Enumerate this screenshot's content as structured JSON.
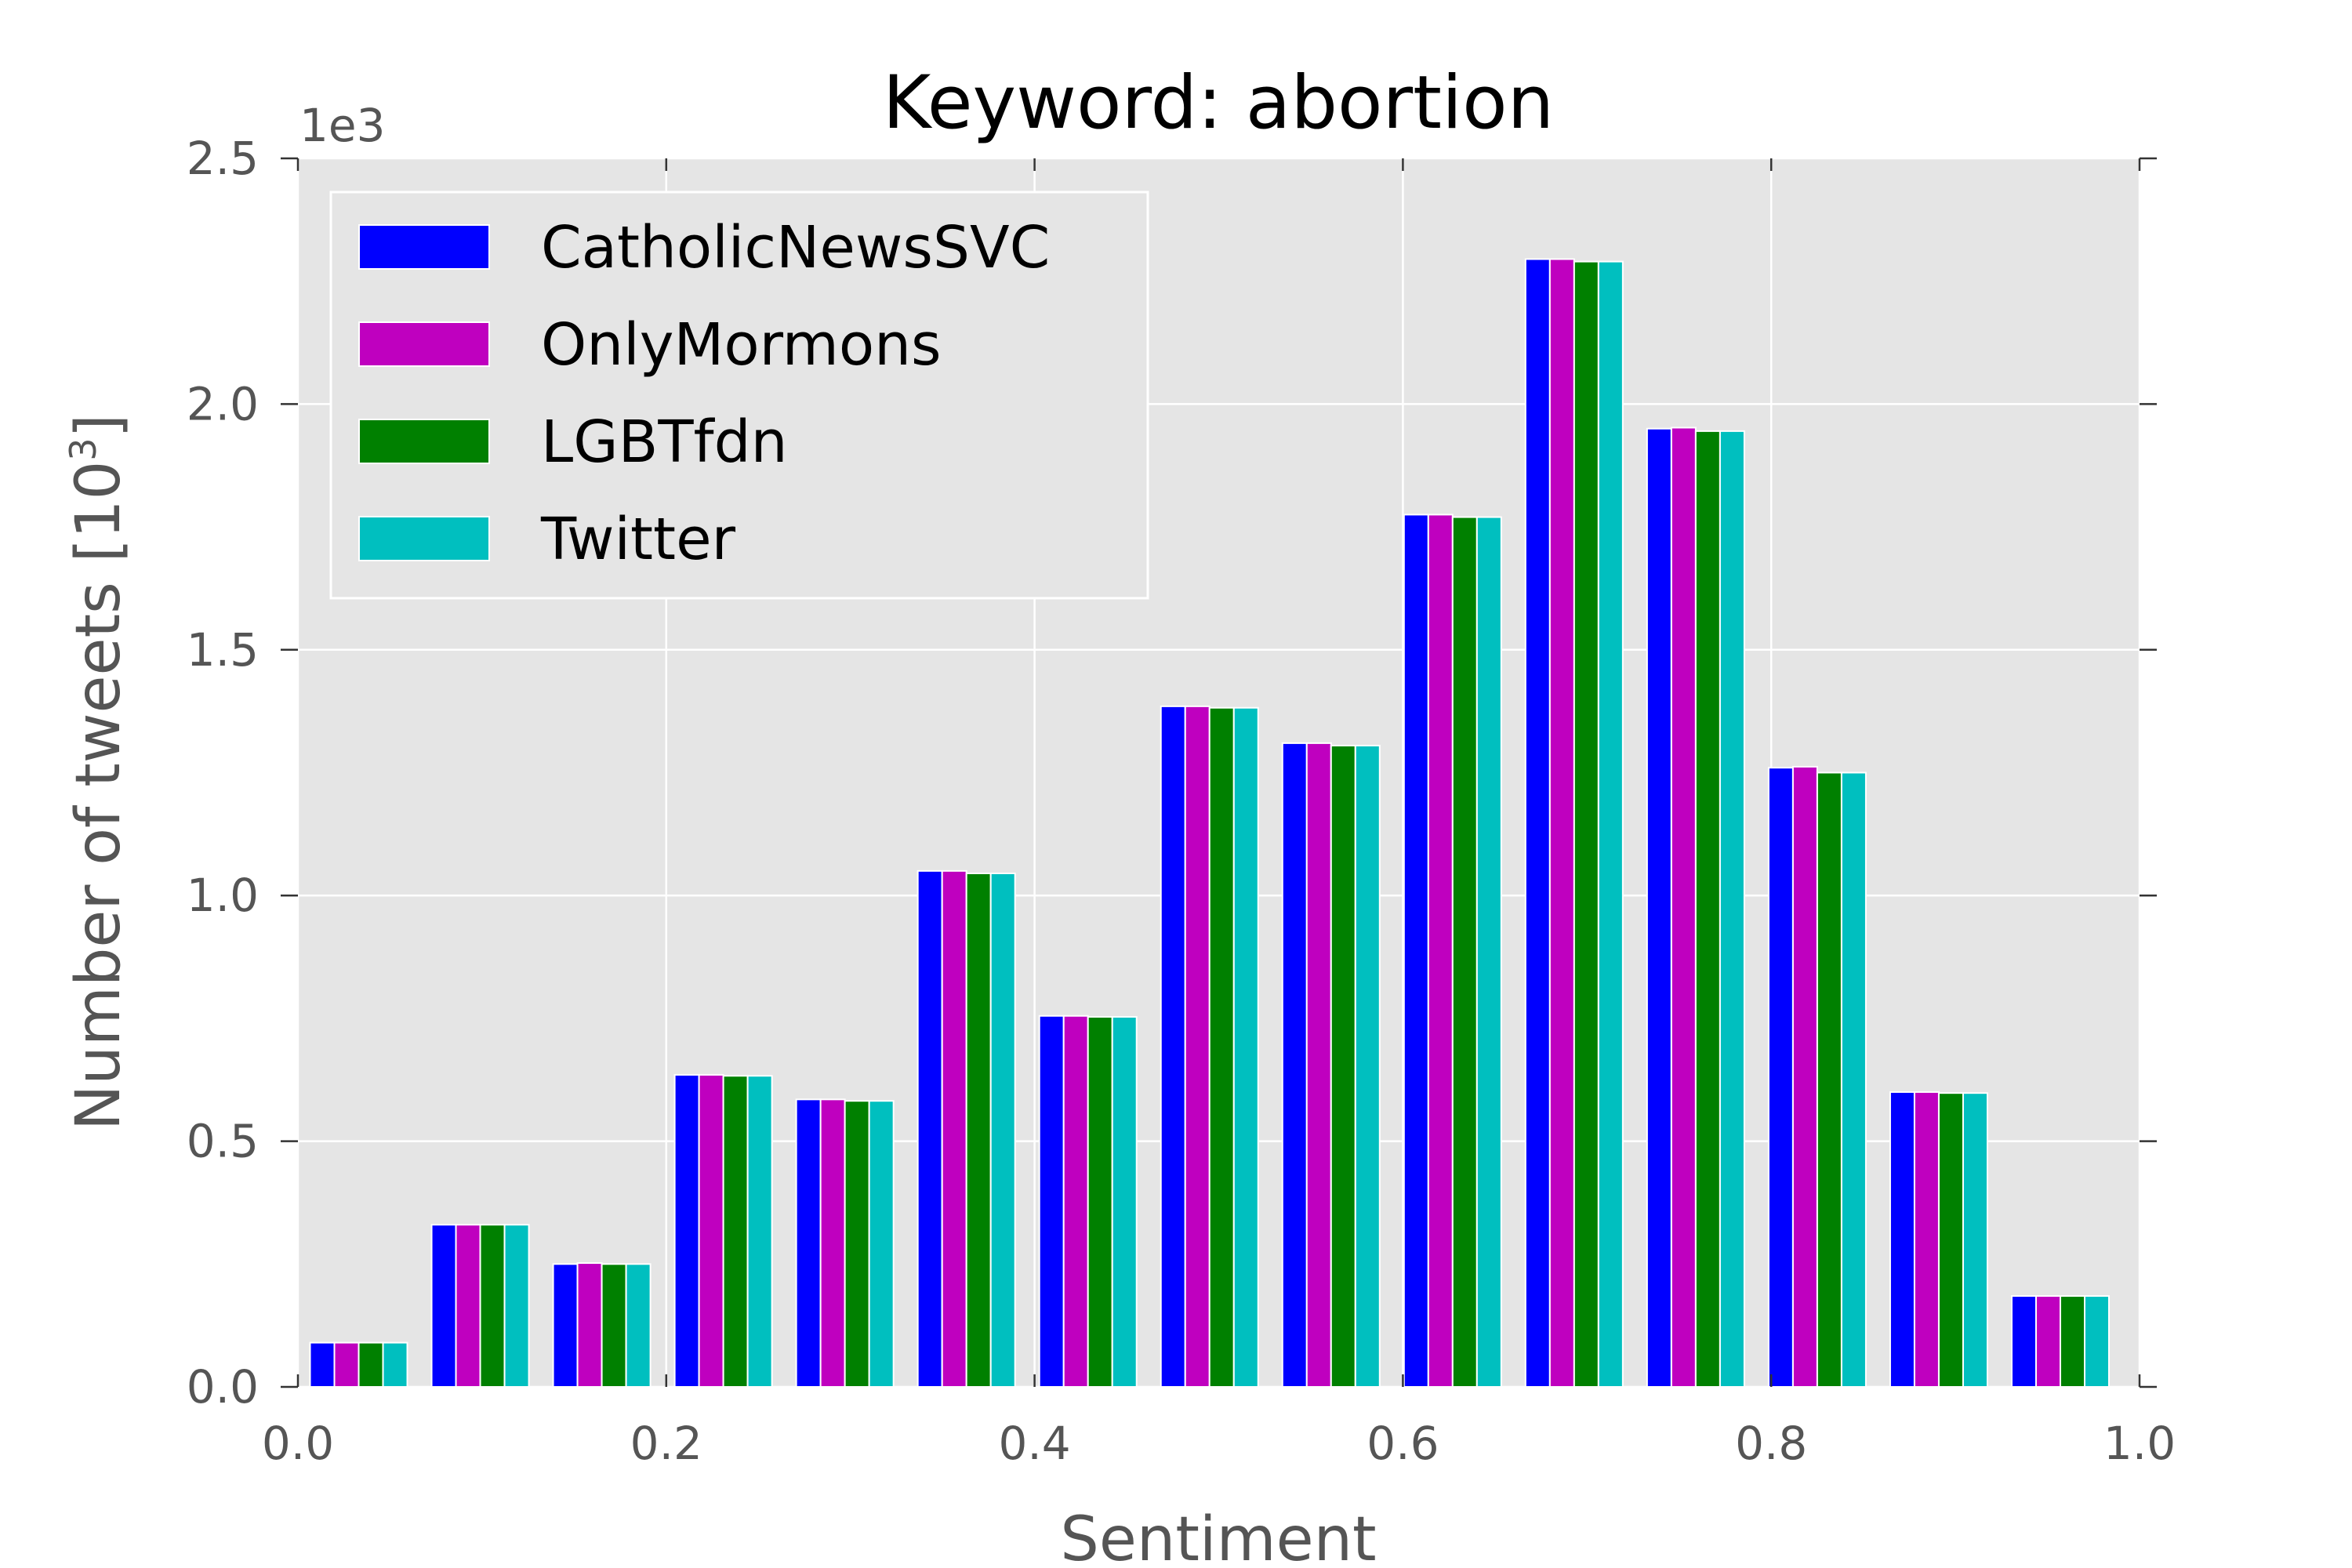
{
  "chart_data": {
    "type": "bar",
    "title": "Keyword: abortion",
    "xlabel": "Sentiment",
    "ylabel_main": "Number of tweets [10",
    "ylabel_exp": "3",
    "ylabel_close": "]",
    "y_offset_text": "1e3",
    "xlim": [
      0.0,
      1.0
    ],
    "ylim": [
      0.0,
      2.5
    ],
    "x_ticks": [
      0.0,
      0.2,
      0.4,
      0.6,
      0.8,
      1.0
    ],
    "x_tick_labels": [
      "0.0",
      "0.2",
      "0.4",
      "0.6",
      "0.8",
      "1.0"
    ],
    "y_ticks": [
      0.0,
      0.5,
      1.0,
      1.5,
      2.0,
      2.5
    ],
    "y_tick_labels": [
      "0.0",
      "0.5",
      "1.0",
      "1.5",
      "2.0",
      "2.5"
    ],
    "grid": true,
    "legend_position": "top-left",
    "bin_starts": [
      0.0,
      0.066,
      0.132,
      0.198,
      0.264,
      0.33,
      0.396,
      0.462,
      0.528,
      0.594,
      0.66,
      0.726,
      0.792,
      0.858,
      0.924
    ],
    "bin_width": 0.066,
    "series": [
      {
        "name": "CatholicNewsSVC",
        "color": "#0000ff",
        "values": [
          0.09,
          0.33,
          0.25,
          0.635,
          0.585,
          1.05,
          0.755,
          1.385,
          1.31,
          1.775,
          2.295,
          1.95,
          1.26,
          0.6,
          0.185
        ]
      },
      {
        "name": "OnlyMormons",
        "color": "#bf00bf",
        "values": [
          0.09,
          0.33,
          0.252,
          0.635,
          0.585,
          1.05,
          0.755,
          1.385,
          1.31,
          1.775,
          2.295,
          1.952,
          1.262,
          0.6,
          0.185
        ]
      },
      {
        "name": "LGBTfdn",
        "color": "#008000",
        "values": [
          0.09,
          0.33,
          0.25,
          0.633,
          0.582,
          1.045,
          0.753,
          1.382,
          1.305,
          1.77,
          2.29,
          1.945,
          1.25,
          0.598,
          0.185
        ]
      },
      {
        "name": "Twitter",
        "color": "#00bfbf",
        "values": [
          0.09,
          0.33,
          0.25,
          0.633,
          0.582,
          1.045,
          0.753,
          1.382,
          1.305,
          1.77,
          2.29,
          1.945,
          1.25,
          0.598,
          0.185
        ]
      }
    ],
    "colors": {
      "plot_background": "#e5e5e5",
      "grid": "#ffffff",
      "text_muted": "#555555"
    }
  }
}
